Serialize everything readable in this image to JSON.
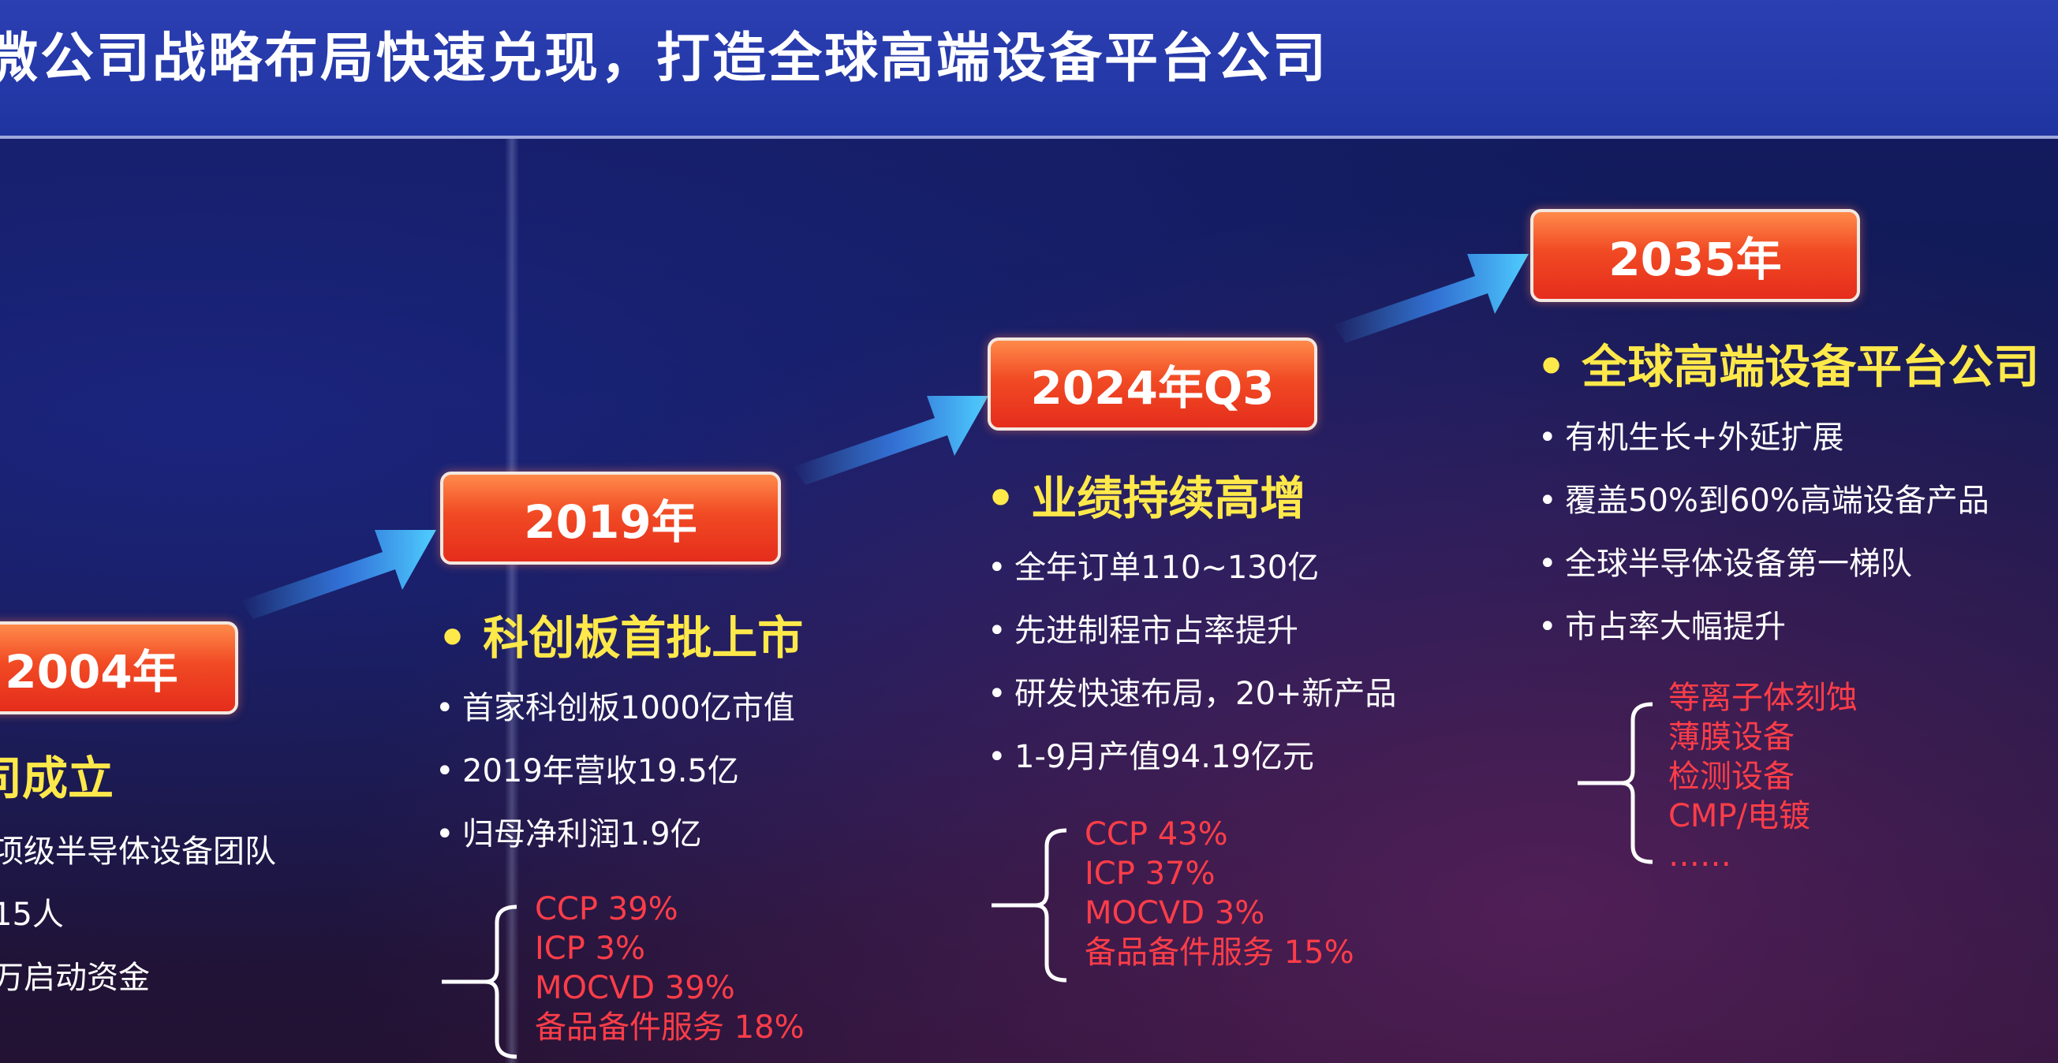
{
  "header": {
    "title": "微公司战略布局快速兑现，打造全球高端设备平台公司"
  },
  "stages": [
    {
      "year": "2004年",
      "headline": "司成立",
      "bullets": [
        "项级半导体设备团队",
        "15人",
        "万启动资金"
      ],
      "shares": []
    },
    {
      "year": "2019年",
      "headline": "科创板首批上市",
      "bullets": [
        "首家科创板1000亿市值",
        "2019年营收19.5亿",
        "归母净利润1.9亿"
      ],
      "shares": [
        "CCP  39%",
        "ICP  3%",
        "MOCVD  39%",
        "备品备件服务  18%"
      ]
    },
    {
      "year": "2024年Q3",
      "headline": "业绩持续高增",
      "bullets": [
        "全年订单110~130亿",
        "先进制程市占率提升",
        "研发快速布局，20+新产品",
        "1-9月产值94.19亿元"
      ],
      "shares": [
        "CCP  43%",
        "ICP  37%",
        "MOCVD  3%",
        "备品备件服务  15%"
      ]
    },
    {
      "year": "2035年",
      "headline": "全球高端设备平台公司",
      "bullets": [
        "有机生长+外延扩展",
        "覆盖50%到60%高端设备产品",
        "全球半导体设备第一梯队",
        "市占率大幅提升"
      ],
      "shares": [
        "等离子体刻蚀",
        "薄膜设备",
        "检测设备",
        "CMP/电镀",
        "……"
      ]
    }
  ],
  "bullet_glyph": "•",
  "colors": {
    "header_bg": "#2034a0",
    "year_box": "#f14a24",
    "headline": "#ffe94a",
    "share_text": "#ff3d48",
    "arrow": "#3fb8ff"
  }
}
